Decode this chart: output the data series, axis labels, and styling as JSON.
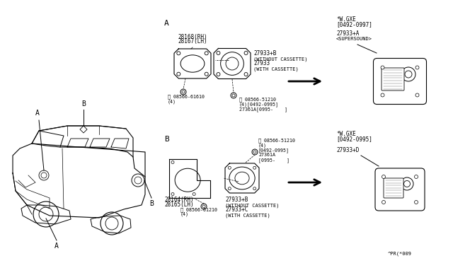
{
  "bg_color": "#FFFFFF",
  "line_color": "#000000",
  "text_color": "#000000",
  "part_number_bottom": "^PR(*009",
  "label_A": "A",
  "label_B": "B",
  "section_A_header1": "28168(RH)",
  "section_A_header2": "28167(LH)",
  "section_A_part1": "27933+B",
  "section_A_part2": "(WITHOUT CASSETTE)",
  "section_A_part3": "27933",
  "section_A_part4": "(WITH CASSETTE)",
  "section_A_screw1_line1": "Ⓢ 08566-61610",
  "section_A_screw1_line2": "(4)",
  "section_A_screw2_line1": "Ⓢ 08566-51210",
  "section_A_screw2_line2": "(4)[0492-0995]",
  "section_A_screw2_line3": "27361A[0995-    ]",
  "section_B_header1": "28164(RH)",
  "section_B_header2": "28165(LH)",
  "section_B_part1": "27933+B",
  "section_B_part2": "(WITHOUT CASSETTE)",
  "section_B_part3": "27933+C",
  "section_B_part4": "(WITH CASSETTE)",
  "section_B_screw1_line1": "Ⓢ 08566-61210",
  "section_B_screw1_line2": "(4)",
  "section_B_screw2_line1": "Ⓢ 08566-51210",
  "section_B_screw2_line2": "(4)",
  "section_B_screw2_line3": "[0492-0995]",
  "section_B_screw2_line4": "27361A",
  "section_B_screw2_line5": "[0995-    ]",
  "top_right_cond1": "*W.GXE",
  "top_right_cond2": "[0492-0997]",
  "top_right_part1": "27933+A",
  "top_right_part2": "<SUPERSOUND>",
  "bot_right_cond1": "*W.GXE",
  "bot_right_cond2": "[0492-0995]",
  "bot_right_part": "27933+D"
}
